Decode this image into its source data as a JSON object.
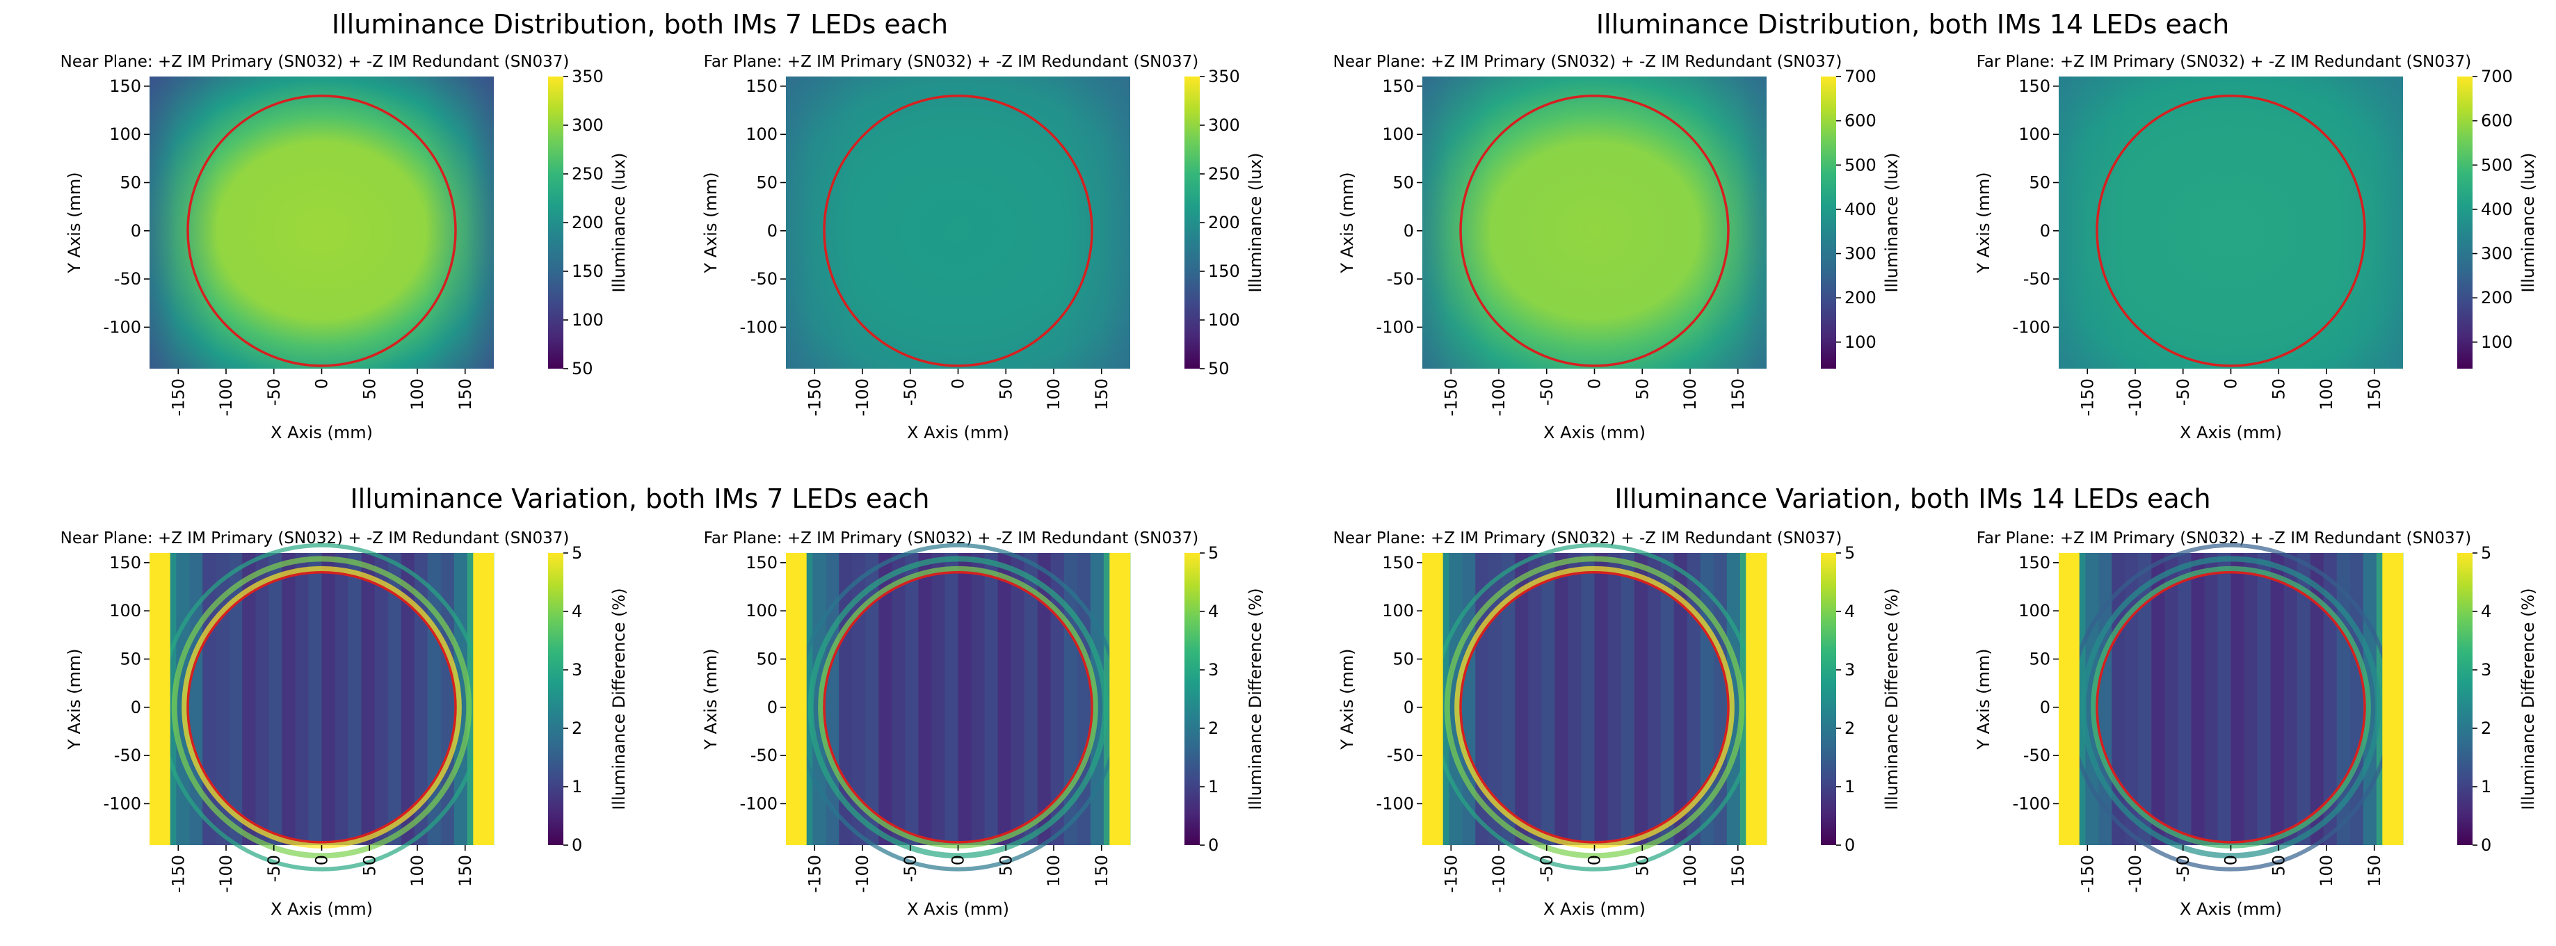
{
  "figure_titles": {
    "dist_7": "Illuminance Distribution, both IMs 7 LEDs each",
    "dist_14": "Illuminance Distribution, both IMs 14 LEDs each",
    "var_7": "Illuminance Variation, both IMs 7 LEDs each",
    "var_14": "Illuminance Variation, both IMs 14 LEDs each"
  },
  "chart_data": [
    {
      "id": "p1",
      "type": "heatmap",
      "group": "dist_7",
      "kind": "distribution",
      "title": "Near Plane: +Z IM Primary (SN032) + -Z IM Redundant (SN037)",
      "xlabel": "X Axis (mm)",
      "ylabel": "Y Axis (mm)",
      "colorbar_label": "Illuminance (lux)",
      "xlim": [
        -180,
        180
      ],
      "ylim": [
        -143,
        160
      ],
      "xticks": [
        -150,
        -100,
        -50,
        0,
        50,
        100,
        150
      ],
      "yticks": [
        150,
        100,
        50,
        0,
        -50,
        -100
      ],
      "clim": [
        50,
        350
      ],
      "cticks": [
        50,
        100,
        150,
        200,
        250,
        300,
        350
      ],
      "center_value": 305,
      "edge_value": 215,
      "corner_value": 130,
      "circle": {
        "center": [
          0,
          0
        ],
        "radius": 140
      }
    },
    {
      "id": "p2",
      "type": "heatmap",
      "group": "dist_7",
      "kind": "distribution",
      "title": "Far Plane: +Z IM Primary (SN032) + -Z IM Redundant (SN037)",
      "xlabel": "X Axis (mm)",
      "ylabel": "Y Axis (mm)",
      "colorbar_label": "Illuminance (lux)",
      "xlim": [
        -180,
        180
      ],
      "ylim": [
        -143,
        160
      ],
      "xticks": [
        -150,
        -100,
        -50,
        0,
        50,
        100,
        150
      ],
      "yticks": [
        150,
        100,
        50,
        0,
        -50,
        -100
      ],
      "clim": [
        50,
        350
      ],
      "cticks": [
        50,
        100,
        150,
        200,
        250,
        300,
        350
      ],
      "center_value": 215,
      "edge_value": 200,
      "corner_value": 160,
      "circle": {
        "center": [
          0,
          0
        ],
        "radius": 140
      }
    },
    {
      "id": "p3",
      "type": "heatmap",
      "group": "dist_14",
      "kind": "distribution",
      "title": "Near Plane: +Z IM Primary (SN032) + -Z IM Redundant (SN037)",
      "xlabel": "X Axis (mm)",
      "ylabel": "Y Axis (mm)",
      "colorbar_label": "Illuminance (lux)",
      "xlim": [
        -180,
        180
      ],
      "ylim": [
        -143,
        160
      ],
      "xticks": [
        -150,
        -100,
        -50,
        0,
        50,
        100,
        150
      ],
      "yticks": [
        150,
        100,
        50,
        0,
        -50,
        -100
      ],
      "clim": [
        40,
        700
      ],
      "cticks": [
        100,
        200,
        300,
        400,
        500,
        600,
        700
      ],
      "center_value": 590,
      "edge_value": 430,
      "corner_value": 280,
      "circle": {
        "center": [
          0,
          0
        ],
        "radius": 140
      }
    },
    {
      "id": "p4",
      "type": "heatmap",
      "group": "dist_14",
      "kind": "distribution",
      "title": "Far Plane: +Z IM Primary (SN032) + -Z IM Redundant (SN037)",
      "xlabel": "X Axis (mm)",
      "ylabel": "Y Axis (mm)",
      "colorbar_label": "Illuminance (lux)",
      "xlim": [
        -180,
        180
      ],
      "ylim": [
        -143,
        160
      ],
      "xticks": [
        -150,
        -100,
        -50,
        0,
        50,
        100,
        150
      ],
      "yticks": [
        150,
        100,
        50,
        0,
        -50,
        -100
      ],
      "clim": [
        40,
        700
      ],
      "cticks": [
        100,
        200,
        300,
        400,
        500,
        600,
        700
      ],
      "center_value": 430,
      "edge_value": 405,
      "corner_value": 330,
      "circle": {
        "center": [
          0,
          0
        ],
        "radius": 140
      }
    },
    {
      "id": "p5",
      "type": "heatmap",
      "group": "var_7",
      "kind": "variation",
      "title": "Near Plane: +Z IM Primary (SN032) + -Z IM Redundant (SN037)",
      "xlabel": "X Axis (mm)",
      "ylabel": "Y Axis (mm)",
      "colorbar_label": "Illuminance Difference (%)",
      "xlim": [
        -180,
        180
      ],
      "ylim": [
        -143,
        160
      ],
      "xticks": [
        -150,
        -100,
        -50,
        0,
        50,
        100,
        150
      ],
      "yticks": [
        150,
        100,
        50,
        0,
        -50,
        -100
      ],
      "clim": [
        0,
        5
      ],
      "cticks": [
        0,
        1,
        2,
        3,
        4,
        5
      ],
      "center_value": 0.9,
      "edge_value": 5,
      "corner_value": 5,
      "circle": {
        "center": [
          0,
          0
        ],
        "radius": 140
      }
    },
    {
      "id": "p6",
      "type": "heatmap",
      "group": "var_7",
      "kind": "variation",
      "title": "Far Plane: +Z IM Primary (SN032) + -Z IM Redundant (SN037)",
      "xlabel": "X Axis (mm)",
      "ylabel": "Y Axis (mm)",
      "colorbar_label": "Illuminance Difference (%)",
      "xlim": [
        -180,
        180
      ],
      "ylim": [
        -143,
        160
      ],
      "xticks": [
        -150,
        -100,
        -50,
        0,
        50,
        100,
        150
      ],
      "yticks": [
        150,
        100,
        50,
        0,
        -50,
        -100
      ],
      "clim": [
        0,
        5
      ],
      "cticks": [
        0,
        1,
        2,
        3,
        4,
        5
      ],
      "center_value": 0.8,
      "edge_value": 4,
      "corner_value": 5,
      "circle": {
        "center": [
          0,
          0
        ],
        "radius": 140
      }
    },
    {
      "id": "p7",
      "type": "heatmap",
      "group": "var_14",
      "kind": "variation",
      "title": "Near Plane: +Z IM Primary (SN032) + -Z IM Redundant (SN037)",
      "xlabel": "X Axis (mm)",
      "ylabel": "Y Axis (mm)",
      "colorbar_label": "Illuminance Difference (%)",
      "xlim": [
        -180,
        180
      ],
      "ylim": [
        -143,
        160
      ],
      "xticks": [
        -150,
        -100,
        -50,
        0,
        50,
        100,
        150
      ],
      "yticks": [
        150,
        100,
        50,
        0,
        -50,
        -100
      ],
      "clim": [
        0,
        5
      ],
      "cticks": [
        0,
        1,
        2,
        3,
        4,
        5
      ],
      "center_value": 0.9,
      "edge_value": 5,
      "corner_value": 5,
      "circle": {
        "center": [
          0,
          0
        ],
        "radius": 140
      }
    },
    {
      "id": "p8",
      "type": "heatmap",
      "group": "var_14",
      "kind": "variation",
      "title": "Far Plane: +Z IM Primary (SN032) + -Z IM Redundant (SN037)",
      "xlabel": "X Axis (mm)",
      "ylabel": "Y Axis (mm)",
      "colorbar_label": "Illuminance Difference (%)",
      "xlim": [
        -180,
        180
      ],
      "ylim": [
        -143,
        160
      ],
      "xticks": [
        -150,
        -100,
        -50,
        0,
        50,
        100,
        150
      ],
      "yticks": [
        150,
        100,
        50,
        0,
        -50,
        -100
      ],
      "clim": [
        0,
        5
      ],
      "cticks": [
        0,
        1,
        2,
        3,
        4,
        5
      ],
      "center_value": 0.8,
      "edge_value": 3.5,
      "corner_value": 5,
      "circle": {
        "center": [
          0,
          0
        ],
        "radius": 140
      }
    }
  ]
}
